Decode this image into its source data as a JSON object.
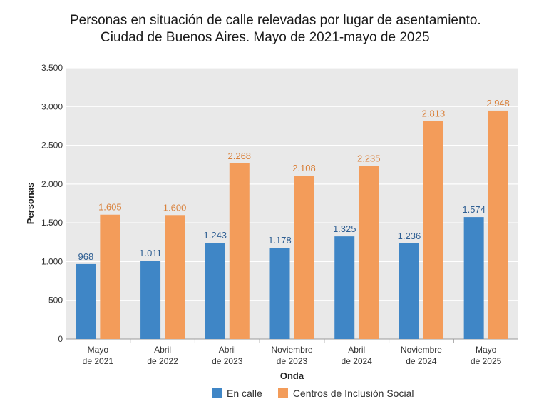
{
  "chart_data": {
    "type": "bar",
    "title_line1": "Personas en situación de calle relevadas por lugar de asentamiento.",
    "title_line2": "Ciudad de Buenos Aires. Mayo de 2021-mayo de 2025",
    "xlabel": "Onda",
    "ylabel": "Personas",
    "ylim": [
      0,
      3500
    ],
    "yticks": [
      0,
      500,
      1000,
      1500,
      2000,
      2500,
      3000,
      3500
    ],
    "ytick_labels": [
      "0",
      "500",
      "1.000",
      "1.500",
      "2.000",
      "2.500",
      "3.000",
      "3.500"
    ],
    "grid": true,
    "legend_position": "bottom",
    "categories": [
      [
        "Mayo",
        "de 2021"
      ],
      [
        "Abril",
        "de 2022"
      ],
      [
        "Abril",
        "de 2023"
      ],
      [
        "Noviembre",
        "de 2023"
      ],
      [
        "Abril",
        "de 2024"
      ],
      [
        "Noviembre",
        "de 2024"
      ],
      [
        "Mayo",
        "de 2025"
      ]
    ],
    "series": [
      {
        "name": "En calle",
        "color": "#3f86c6",
        "values": [
          968,
          1011,
          1243,
          1178,
          1325,
          1236,
          1574
        ],
        "labels": [
          "968",
          "1.011",
          "1.243",
          "1.178",
          "1.325",
          "1.236",
          "1.574"
        ]
      },
      {
        "name": "Centros de Inclusión Social",
        "color": "#f39c5a",
        "values": [
          1605,
          1600,
          2268,
          2108,
          2235,
          2813,
          2948
        ],
        "labels": [
          "1.605",
          "1.600",
          "2.268",
          "2.108",
          "2.235",
          "2.813",
          "2.948"
        ]
      }
    ]
  },
  "style": {
    "plot_bg": "#e9e9e9",
    "grid_color": "#ffffff",
    "label_color_calle": "#2f5f93",
    "label_color_cis": "#d9803a"
  }
}
